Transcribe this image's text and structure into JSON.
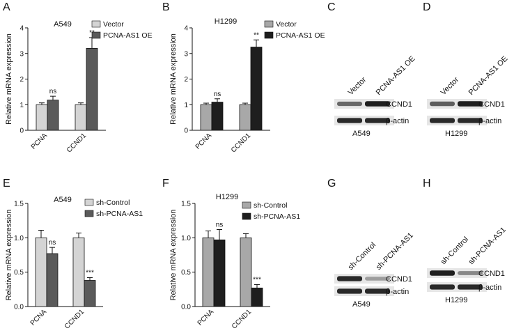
{
  "figure": {
    "panel_letters": [
      "A",
      "B",
      "C",
      "D",
      "E",
      "F",
      "G",
      "H"
    ]
  },
  "colors": {
    "vector": "#cfcfcf",
    "oe_A": "#5a5a5a",
    "oe_B": "#1e1e1e",
    "control": "#c8c8c8",
    "sh": "#3a3a3a",
    "ink": "#111111"
  },
  "chart_data": [
    {
      "panel": "A",
      "type": "bar",
      "title": "A549",
      "ylabel": "Relative mRNA expression",
      "xlabel": "",
      "categories": [
        "PCNA",
        "CCND1"
      ],
      "ylim": [
        0,
        4
      ],
      "yticks": [
        "0",
        "1",
        "2",
        "3",
        "4"
      ],
      "legend_position": "top-right",
      "series": [
        {
          "name": "Vector",
          "values": [
            1.0,
            1.0
          ],
          "errors": [
            0.07,
            0.07
          ],
          "color": "#d4d4d4"
        },
        {
          "name": "PCNA-AS1 OE",
          "values": [
            1.18,
            3.2
          ],
          "errors": [
            0.15,
            0.42
          ],
          "color": "#5a5a5a"
        }
      ],
      "annotations": [
        "ns",
        "**"
      ]
    },
    {
      "panel": "B",
      "type": "bar",
      "title": "H1299",
      "ylabel": "Relative mRNA expression",
      "xlabel": "",
      "categories": [
        "PCNA",
        "CCND1"
      ],
      "ylim": [
        0,
        4
      ],
      "yticks": [
        "0",
        "1",
        "2",
        "3",
        "4"
      ],
      "legend_position": "top-right",
      "series": [
        {
          "name": "Vector",
          "values": [
            1.0,
            1.0
          ],
          "errors": [
            0.06,
            0.06
          ],
          "color": "#a8a8a8"
        },
        {
          "name": "PCNA-AS1 OE",
          "values": [
            1.1,
            3.25
          ],
          "errors": [
            0.13,
            0.28
          ],
          "color": "#1e1e1e"
        }
      ],
      "annotations": [
        "ns",
        "**"
      ]
    },
    {
      "panel": "E",
      "type": "bar",
      "title": "A549",
      "ylabel": "Relative mRNA expression",
      "xlabel": "",
      "categories": [
        "PCNA",
        "CCND1"
      ],
      "ylim": [
        0,
        1.5
      ],
      "yticks": [
        "0.0",
        "0.5",
        "1.0",
        "1.5"
      ],
      "legend_position": "top-right",
      "series": [
        {
          "name": "sh-Control",
          "values": [
            1.0,
            1.0
          ],
          "errors": [
            0.11,
            0.07
          ],
          "color": "#d4d4d4"
        },
        {
          "name": "sh-PCNA-AS1",
          "values": [
            0.77,
            0.38
          ],
          "errors": [
            0.09,
            0.04
          ],
          "color": "#5a5a5a"
        }
      ],
      "annotations": [
        "ns",
        "***"
      ]
    },
    {
      "panel": "F",
      "type": "bar",
      "title": "H1299",
      "ylabel": "Relative mRNA expression",
      "xlabel": "",
      "categories": [
        "PCNA",
        "CCND1"
      ],
      "ylim": [
        0,
        1.5
      ],
      "yticks": [
        "0.0",
        "0.5",
        "1.0",
        "1.5"
      ],
      "legend_position": "top-right",
      "series": [
        {
          "name": "sh-Control",
          "values": [
            1.0,
            1.0
          ],
          "errors": [
            0.1,
            0.06
          ],
          "color": "#a8a8a8"
        },
        {
          "name": "sh-PCNA-AS1",
          "values": [
            0.97,
            0.27
          ],
          "errors": [
            0.15,
            0.05
          ],
          "color": "#1e1e1e"
        }
      ],
      "annotations": [
        "ns",
        "***"
      ]
    }
  ],
  "blots": [
    {
      "panel": "C",
      "lanes": [
        "Vector",
        "PCNA-AS1 OE"
      ],
      "rows": [
        "CCND1",
        "β-actin"
      ],
      "cell_line": "A549",
      "intensity": [
        [
          0.6,
          0.95
        ],
        [
          0.9,
          0.9
        ]
      ]
    },
    {
      "panel": "D",
      "lanes": [
        "Vector",
        "PCNA-AS1 OE"
      ],
      "rows": [
        "CCND1",
        "β-actin"
      ],
      "cell_line": "H1299",
      "intensity": [
        [
          0.65,
          0.95
        ],
        [
          0.9,
          0.9
        ]
      ]
    },
    {
      "panel": "G",
      "lanes": [
        "sh-Control",
        "sh-PCNA-AS1"
      ],
      "rows": [
        "CCND1",
        "β-actin"
      ],
      "cell_line": "A549",
      "intensity": [
        [
          0.9,
          0.35
        ],
        [
          0.9,
          0.9
        ]
      ]
    },
    {
      "panel": "H",
      "lanes": [
        "sh-Control",
        "sh-PCNA-AS1"
      ],
      "rows": [
        "CCND1",
        "β-actin"
      ],
      "cell_line": "H1299",
      "intensity": [
        [
          0.95,
          0.45
        ],
        [
          0.9,
          0.9
        ]
      ]
    }
  ]
}
